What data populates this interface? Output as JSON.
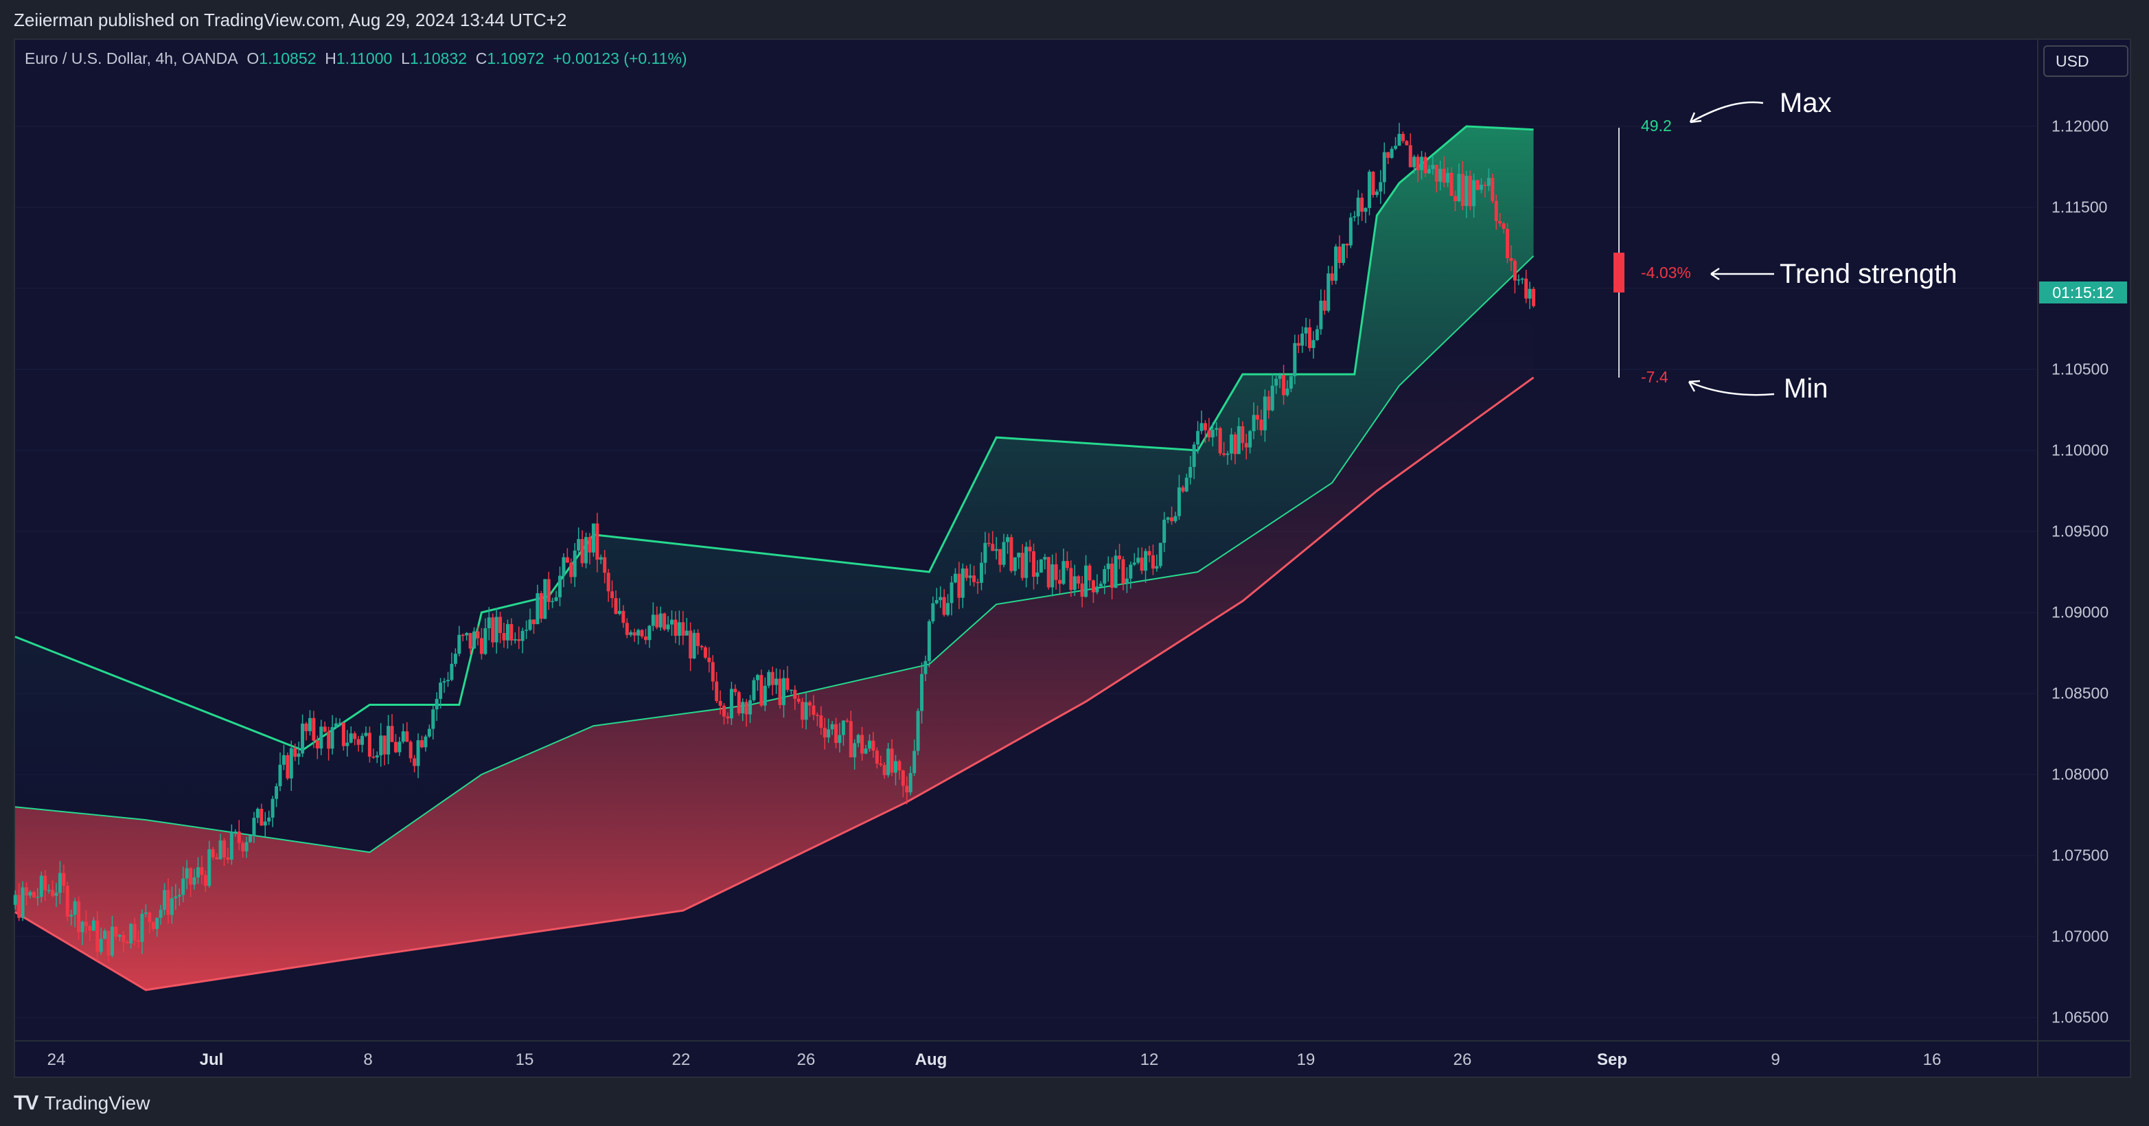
{
  "header": {
    "publish_text": "Zeiierman published on TradingView.com, Aug 29, 2024 13:44 UTC+2"
  },
  "legend": {
    "symbol": "Euro / U.S. Dollar, 4h, OANDA",
    "o_label": "O",
    "o_value": "1.10852",
    "h_label": "H",
    "h_value": "1.11000",
    "l_label": "L",
    "l_value": "1.10832",
    "c_label": "C",
    "c_value": "1.10972",
    "change": "+0.00123 (+0.11%)"
  },
  "price_axis": {
    "currency": "USD",
    "countdown": "01:15:12",
    "labels": [
      "1.12000",
      "1.11500",
      "1.10500",
      "1.10000",
      "1.09500",
      "1.09000",
      "1.08500",
      "1.08000",
      "1.07500",
      "1.07000",
      "1.06500"
    ]
  },
  "time_axis": {
    "labels": [
      "24",
      "Jul",
      "8",
      "15",
      "22",
      "26",
      "Aug",
      "12",
      "19",
      "26",
      "Sep",
      "9",
      "16"
    ]
  },
  "annotations": {
    "max_label": "Max",
    "max_value": "49.2",
    "trend_label": "Trend strength",
    "trend_value": "-4.03%",
    "min_label": "Min",
    "min_value": "-7.4"
  },
  "branding": {
    "name": "TradingView",
    "logo_glyph": "TV"
  },
  "colors": {
    "background": "#111331",
    "frame": "#1e222d",
    "bull": "#22ab94",
    "bear": "#f23645",
    "upper_band": "#26d98f",
    "lower_band": "#f25563",
    "accent_green": "#26c6a6"
  },
  "chart_data": {
    "type": "line",
    "symbol": "Euro / U.S. Dollar",
    "timeframe": "4h",
    "ylim": [
      1.0625,
      1.1225
    ],
    "y_ticks": [
      1.065,
      1.07,
      1.075,
      1.08,
      1.085,
      1.09,
      1.095,
      1.1,
      1.105,
      1.11,
      1.115,
      1.12
    ],
    "close_path": [
      [
        "2024-06-20",
        1.0705
      ],
      [
        "2024-06-24",
        1.0732
      ],
      [
        "2024-06-26",
        1.0695
      ],
      [
        "2024-06-28",
        1.071
      ],
      [
        "2024-07-01",
        1.0745
      ],
      [
        "2024-07-03",
        1.077
      ],
      [
        "2024-07-05",
        1.0825
      ],
      [
        "2024-07-08",
        1.0822
      ],
      [
        "2024-07-10",
        1.0815
      ],
      [
        "2024-07-12",
        1.088
      ],
      [
        "2024-07-15",
        1.0895
      ],
      [
        "2024-07-17",
        1.093
      ],
      [
        "2024-07-18",
        1.0945
      ],
      [
        "2024-07-19",
        1.0895
      ],
      [
        "2024-07-22",
        1.0888
      ],
      [
        "2024-07-24",
        1.0843
      ],
      [
        "2024-07-26",
        1.0855
      ],
      [
        "2024-07-29",
        1.0825
      ],
      [
        "2024-07-31",
        1.081
      ],
      [
        "2024-08-01",
        1.0785
      ],
      [
        "2024-08-02",
        1.09
      ],
      [
        "2024-08-05",
        1.094
      ],
      [
        "2024-08-07",
        1.0925
      ],
      [
        "2024-08-09",
        1.092
      ],
      [
        "2024-08-12",
        1.093
      ],
      [
        "2024-08-14",
        1.101
      ],
      [
        "2024-08-16",
        1.1005
      ],
      [
        "2024-08-19",
        1.107
      ],
      [
        "2024-08-21",
        1.115
      ],
      [
        "2024-08-23",
        1.1185
      ],
      [
        "2024-08-26",
        1.116
      ],
      [
        "2024-08-27",
        1.117
      ],
      [
        "2024-08-28",
        1.111
      ],
      [
        "2024-08-29",
        1.1097
      ]
    ],
    "upper_band": [
      [
        "2024-06-20",
        1.0885
      ],
      [
        "2024-07-05",
        1.0815
      ],
      [
        "2024-07-08",
        1.0843
      ],
      [
        "2024-07-12",
        1.0843
      ],
      [
        "2024-07-13",
        1.09
      ],
      [
        "2024-07-16",
        1.091
      ],
      [
        "2024-07-18",
        1.0948
      ],
      [
        "2024-08-02",
        1.0925
      ],
      [
        "2024-08-05",
        1.1008
      ],
      [
        "2024-08-14",
        1.1
      ],
      [
        "2024-08-16",
        1.1047
      ],
      [
        "2024-08-21",
        1.1047
      ],
      [
        "2024-08-22",
        1.1145
      ],
      [
        "2024-08-23",
        1.1165
      ],
      [
        "2024-08-26",
        1.12
      ],
      [
        "2024-08-29",
        1.1198
      ]
    ],
    "lower_band": [
      [
        "2024-06-20",
        1.0715
      ],
      [
        "2024-06-28",
        1.0667
      ],
      [
        "2024-07-08",
        1.0688
      ],
      [
        "2024-07-22",
        1.0716
      ],
      [
        "2024-08-01",
        1.0783
      ],
      [
        "2024-08-09",
        1.0845
      ],
      [
        "2024-08-16",
        1.0907
      ],
      [
        "2024-08-22",
        1.0975
      ],
      [
        "2024-08-29",
        1.1045
      ]
    ],
    "trend_line": [
      [
        "2024-06-20",
        1.078
      ],
      [
        "2024-06-28",
        1.0772
      ],
      [
        "2024-07-08",
        1.0752
      ],
      [
        "2024-07-13",
        1.08
      ],
      [
        "2024-07-18",
        1.083
      ],
      [
        "2024-07-25",
        1.0843
      ],
      [
        "2024-08-02",
        1.0868
      ],
      [
        "2024-08-05",
        1.0905
      ],
      [
        "2024-08-14",
        1.0925
      ],
      [
        "2024-08-20",
        1.098
      ],
      [
        "2024-08-23",
        1.104
      ],
      [
        "2024-08-29",
        1.112
      ]
    ],
    "oscillator": {
      "max": 49.2,
      "value_percent": -4.03,
      "min": -7.4
    }
  }
}
